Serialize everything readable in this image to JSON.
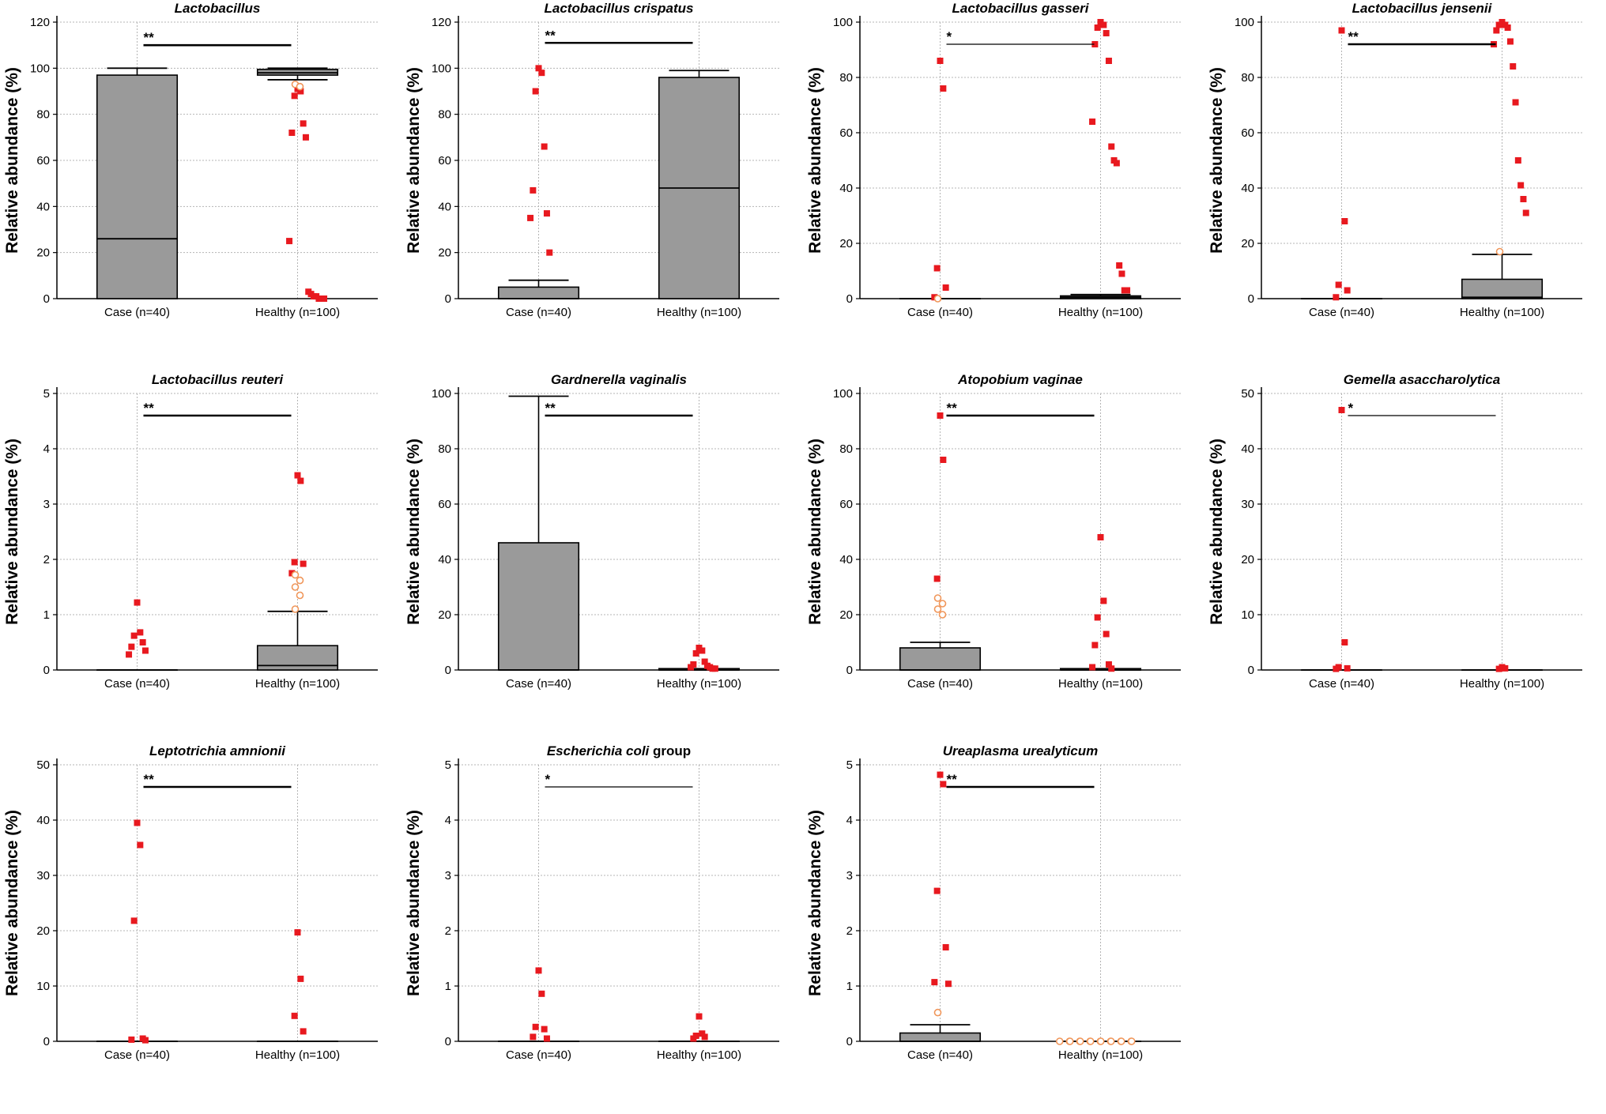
{
  "figure": {
    "y_axis_label": "Relative abundance (%)",
    "group_labels": [
      "Case (n=40)",
      "Healthy (n=100)"
    ]
  },
  "colors": {
    "box_fill": "#9a9a9a",
    "outlier": "#e8191f",
    "open_outlier": "#f0965a",
    "grid": "#b4b4b4",
    "axis": "#000000"
  },
  "chart_data": [
    {
      "type": "box",
      "title": "Lactobacillus",
      "title_suffix": "",
      "ylim": [
        0,
        120
      ],
      "yticks": [
        0,
        20,
        40,
        60,
        80,
        100,
        120
      ],
      "significance": "**",
      "sig_y": 110,
      "groups": [
        {
          "label": "Case (n=40)",
          "q1": 0,
          "median": 26,
          "q3": 97,
          "whisker_low": 0,
          "whisker_high": 100,
          "outliers": [],
          "open_outliers": []
        },
        {
          "label": "Healthy (n=100)",
          "q1": 97,
          "median": 98,
          "q3": 99.5,
          "whisker_low": 95,
          "whisker_high": 100,
          "outliers": [
            91,
            90,
            88,
            76,
            72,
            70,
            25,
            3,
            2,
            1,
            1,
            0,
            0,
            0
          ],
          "open_outliers": [
            93,
            92
          ]
        }
      ]
    },
    {
      "type": "box",
      "title": "Lactobacillus crispatus",
      "title_suffix": "",
      "ylim": [
        0,
        120
      ],
      "yticks": [
        0,
        20,
        40,
        60,
        80,
        100,
        120
      ],
      "significance": "**",
      "sig_y": 111,
      "groups": [
        {
          "label": "Case (n=40)",
          "q1": 0,
          "median": 0,
          "q3": 5,
          "whisker_low": 0,
          "whisker_high": 8,
          "outliers": [
            100,
            98,
            90,
            66,
            47,
            37,
            35,
            20
          ],
          "open_outliers": []
        },
        {
          "label": "Healthy (n=100)",
          "q1": 0,
          "median": 48,
          "q3": 96,
          "whisker_low": 0,
          "whisker_high": 99,
          "outliers": [],
          "open_outliers": []
        }
      ]
    },
    {
      "type": "box",
      "title": "Lactobacillus gasseri",
      "title_suffix": "",
      "ylim": [
        0,
        100
      ],
      "yticks": [
        0,
        20,
        40,
        60,
        80,
        100
      ],
      "significance": "*",
      "sig_y": 92,
      "groups": [
        {
          "label": "Case (n=40)",
          "q1": 0,
          "median": 0,
          "q3": 0,
          "whisker_low": 0,
          "whisker_high": 0,
          "outliers": [
            86,
            76,
            11,
            4,
            0.5
          ],
          "open_outliers": [
            0
          ]
        },
        {
          "label": "Healthy (n=100)",
          "q1": 0,
          "median": 0.5,
          "q3": 1,
          "whisker_low": 0,
          "whisker_high": 1.5,
          "outliers": [
            100,
            99,
            98,
            96,
            92,
            86,
            64,
            55,
            50,
            49,
            12,
            9,
            3,
            3
          ],
          "open_outliers": []
        }
      ]
    },
    {
      "type": "box",
      "title": "Lactobacillus jensenii",
      "title_suffix": "",
      "ylim": [
        0,
        100
      ],
      "yticks": [
        0,
        20,
        40,
        60,
        80,
        100
      ],
      "significance": "**",
      "sig_y": 92,
      "groups": [
        {
          "label": "Case (n=40)",
          "q1": 0,
          "median": 0,
          "q3": 0,
          "whisker_low": 0,
          "whisker_high": 0,
          "outliers": [
            97,
            28,
            5,
            3,
            0.5
          ],
          "open_outliers": []
        },
        {
          "label": "Healthy (n=100)",
          "q1": 0,
          "median": 0.5,
          "q3": 7,
          "whisker_low": 0,
          "whisker_high": 16,
          "outliers": [
            100,
            99,
            99,
            98,
            97,
            93,
            92,
            84,
            71,
            50,
            41,
            36,
            31
          ],
          "open_outliers": [
            17
          ]
        }
      ]
    },
    {
      "type": "box",
      "title": "Lactobacillus reuteri",
      "title_suffix": "",
      "ylim": [
        0,
        5
      ],
      "yticks": [
        0,
        1,
        2,
        3,
        4,
        5
      ],
      "significance": "**",
      "sig_y": 4.6,
      "groups": [
        {
          "label": "Case (n=40)",
          "q1": 0,
          "median": 0,
          "q3": 0,
          "whisker_low": 0,
          "whisker_high": 0,
          "outliers": [
            1.22,
            0.68,
            0.62,
            0.5,
            0.42,
            0.35,
            0.28
          ],
          "open_outliers": []
        },
        {
          "label": "Healthy (n=100)",
          "q1": 0,
          "median": 0.08,
          "q3": 0.44,
          "whisker_low": 0,
          "whisker_high": 1.06,
          "outliers": [
            3.52,
            3.42,
            1.95,
            1.92,
            1.75
          ],
          "open_outliers": [
            1.72,
            1.62,
            1.5,
            1.35,
            1.1
          ]
        }
      ]
    },
    {
      "type": "box",
      "title": "Gardnerella vaginalis",
      "title_suffix": "",
      "ylim": [
        0,
        100
      ],
      "yticks": [
        0,
        20,
        40,
        60,
        80,
        100
      ],
      "significance": "**",
      "sig_y": 92,
      "groups": [
        {
          "label": "Case (n=40)",
          "q1": 0,
          "median": 0,
          "q3": 46,
          "whisker_low": 0,
          "whisker_high": 99,
          "outliers": [],
          "open_outliers": []
        },
        {
          "label": "Healthy (n=100)",
          "q1": 0,
          "median": 0,
          "q3": 0.5,
          "whisker_low": 0,
          "whisker_high": 0.5,
          "outliers": [
            8,
            7,
            6,
            3,
            2,
            1.5,
            1,
            1,
            0.5,
            0.5
          ],
          "open_outliers": []
        }
      ]
    },
    {
      "type": "box",
      "title": "Atopobium vaginae",
      "title_suffix": "",
      "ylim": [
        0,
        100
      ],
      "yticks": [
        0,
        20,
        40,
        60,
        80,
        100
      ],
      "significance": "**",
      "sig_y": 92,
      "groups": [
        {
          "label": "Case (n=40)",
          "q1": 0,
          "median": 0,
          "q3": 8,
          "whisker_low": 0,
          "whisker_high": 10,
          "outliers": [
            92,
            76,
            33
          ],
          "open_outliers": [
            26,
            24,
            22,
            20
          ]
        },
        {
          "label": "Healthy (n=100)",
          "q1": 0,
          "median": 0,
          "q3": 0.5,
          "whisker_low": 0,
          "whisker_high": 0.5,
          "outliers": [
            48,
            25,
            19,
            13,
            9,
            2,
            1,
            0.5
          ],
          "open_outliers": []
        }
      ]
    },
    {
      "type": "box",
      "title": "Gemella asaccharolytica",
      "title_suffix": "",
      "ylim": [
        0,
        50
      ],
      "yticks": [
        0,
        10,
        20,
        30,
        40,
        50
      ],
      "significance": "*",
      "sig_y": 46,
      "groups": [
        {
          "label": "Case (n=40)",
          "q1": 0,
          "median": 0,
          "q3": 0,
          "whisker_low": 0,
          "whisker_high": 0,
          "outliers": [
            47,
            5,
            0.5,
            0.3,
            0.2
          ],
          "open_outliers": []
        },
        {
          "label": "Healthy (n=100)",
          "q1": 0,
          "median": 0,
          "q3": 0,
          "whisker_low": 0,
          "whisker_high": 0,
          "outliers": [
            0.5,
            0.3,
            0.2
          ],
          "open_outliers": []
        }
      ]
    },
    {
      "type": "box",
      "title": "Leptotrichia amnionii",
      "title_suffix": "",
      "ylim": [
        0,
        50
      ],
      "yticks": [
        0,
        10,
        20,
        30,
        40,
        50
      ],
      "significance": "**",
      "sig_y": 46,
      "groups": [
        {
          "label": "Case (n=40)",
          "q1": 0,
          "median": 0,
          "q3": 0,
          "whisker_low": 0,
          "whisker_high": 0,
          "outliers": [
            39.5,
            35.5,
            21.8,
            0.5,
            0.3,
            0.2
          ],
          "open_outliers": []
        },
        {
          "label": "Healthy (n=100)",
          "q1": 0,
          "median": 0,
          "q3": 0,
          "whisker_low": 0,
          "whisker_high": 0,
          "outliers": [
            19.7,
            11.3,
            4.6,
            1.8
          ],
          "open_outliers": []
        }
      ]
    },
    {
      "type": "box",
      "title": "Escherichia coli",
      "title_suffix": " group",
      "ylim": [
        0,
        5
      ],
      "yticks": [
        0,
        1,
        2,
        3,
        4,
        5
      ],
      "significance": "*",
      "sig_y": 4.6,
      "groups": [
        {
          "label": "Case (n=40)",
          "q1": 0,
          "median": 0,
          "q3": 0,
          "whisker_low": 0,
          "whisker_high": 0,
          "outliers": [
            1.28,
            0.86,
            0.26,
            0.22,
            0.08,
            0.05
          ],
          "open_outliers": []
        },
        {
          "label": "Healthy (n=100)",
          "q1": 0,
          "median": 0,
          "q3": 0,
          "whisker_low": 0,
          "whisker_high": 0,
          "outliers": [
            0.45,
            0.14,
            0.1,
            0.08,
            0.05
          ],
          "open_outliers": []
        }
      ]
    },
    {
      "type": "box",
      "title": "Ureaplasma urealyticum",
      "title_suffix": "",
      "ylim": [
        0,
        5
      ],
      "yticks": [
        0,
        1,
        2,
        3,
        4,
        5
      ],
      "significance": "**",
      "sig_y": 4.6,
      "groups": [
        {
          "label": "Case (n=40)",
          "q1": 0,
          "median": 0,
          "q3": 0.15,
          "whisker_low": 0,
          "whisker_high": 0.3,
          "outliers": [
            4.82,
            4.65,
            2.72,
            1.7,
            1.07,
            1.04
          ],
          "open_outliers": [
            0.52
          ]
        },
        {
          "label": "Healthy (n=100)",
          "q1": 0,
          "median": 0,
          "q3": 0,
          "whisker_low": 0,
          "whisker_high": 0,
          "outliers": [],
          "open_outliers": [
            0,
            0,
            0,
            0,
            0,
            0,
            0,
            0,
            0,
            0,
            0,
            0,
            0,
            0,
            0
          ]
        }
      ]
    }
  ]
}
